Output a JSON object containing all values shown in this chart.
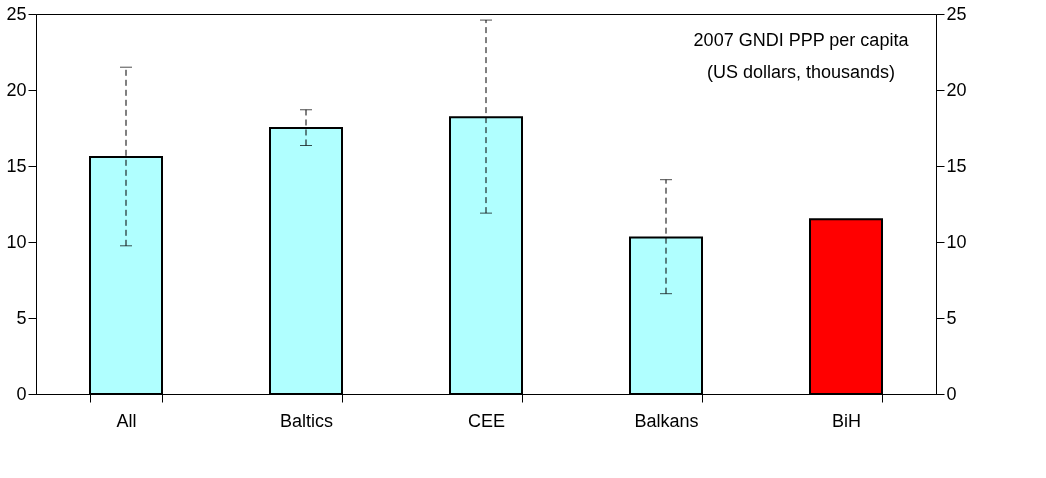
{
  "chart_data": {
    "type": "bar",
    "categories": [
      "All",
      "Baltics",
      "CEE",
      "Balkans",
      "BiH"
    ],
    "values": [
      15.6,
      17.5,
      18.2,
      10.3,
      11.5
    ],
    "colors": [
      "#b0ffff",
      "#b0ffff",
      "#b0ffff",
      "#b0ffff",
      "#ff0000"
    ],
    "errors": [
      [
        9.75,
        21.5
      ],
      [
        16.35,
        18.7
      ],
      [
        11.9,
        24.6
      ],
      [
        6.6,
        14.1
      ],
      null
    ],
    "ylim": [
      0,
      25
    ],
    "yticks": [
      0,
      5,
      10,
      15,
      20,
      25
    ],
    "y2lim": [
      0,
      25
    ],
    "y2ticks": [
      0,
      5,
      10,
      15,
      20,
      25
    ],
    "annotations": [
      "2007 GNDI PPP per capita\n(US dollars, thousands)"
    ],
    "grid": false,
    "legend": false
  }
}
